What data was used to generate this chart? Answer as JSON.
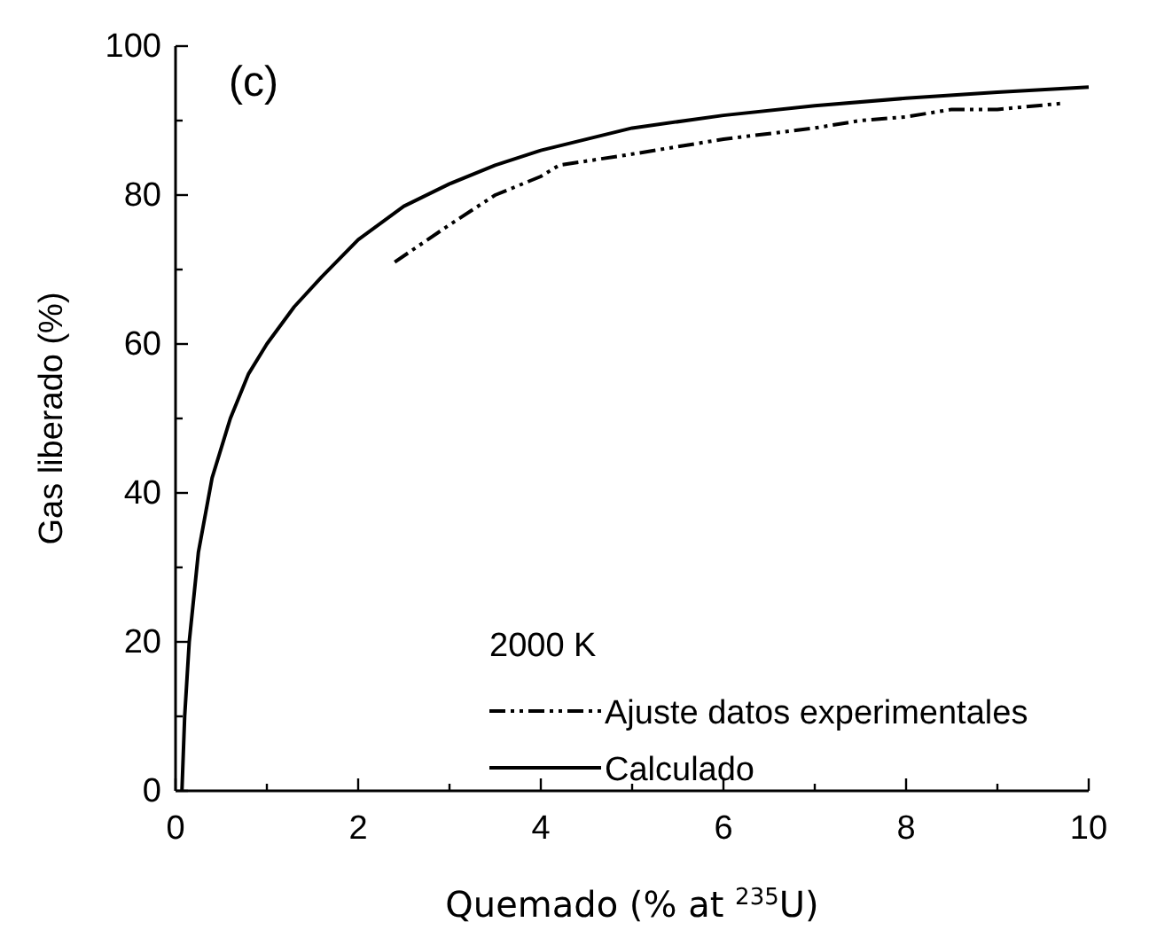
{
  "chart_data": {
    "type": "line",
    "xlabel": "Quemado (% at $^{235}$U)",
    "ylabel": "Gas liberado (%)",
    "legend_title": "2000 K",
    "legend": "bottom right",
    "annotations": [
      "(c)"
    ],
    "xlim": [
      0,
      10
    ],
    "ylim": [
      0,
      100
    ],
    "xticks": [
      0,
      {
        "value": 1,
        "label": null
      },
      2,
      {
        "value": 3,
        "label": null
      },
      4,
      {
        "value": 5,
        "label": null
      },
      6,
      {
        "value": 7,
        "label": null
      },
      8,
      {
        "value": 9,
        "label": null
      },
      10
    ],
    "yticks": [
      0,
      {
        "value": 10,
        "label": null
      },
      20,
      {
        "value": 30,
        "label": null
      },
      40,
      {
        "value": 50,
        "label": null
      },
      60,
      {
        "value": 70,
        "label": null
      },
      80,
      {
        "value": 90,
        "label": null
      },
      100
    ],
    "series": [
      {
        "name": "Ajuste datos experimentales",
        "color": "#000000",
        "line_style": "dashed",
        "x": [
          2.4,
          3,
          3.5,
          4,
          4.2,
          5,
          6,
          7,
          7.5,
          8,
          8.5,
          9,
          9.7
        ],
        "values": [
          71,
          76,
          80,
          82.5,
          84,
          85.5,
          87.5,
          89,
          90,
          90.5,
          91.5,
          91.5,
          92.3
        ]
      },
      {
        "name": "Calculado",
        "color": "#000000",
        "line_style": "solid",
        "x": [
          0.07,
          0.1,
          0.15,
          0.25,
          0.4,
          0.6,
          0.8,
          1,
          1.3,
          1.6,
          2,
          2.5,
          3,
          3.5,
          4,
          5,
          6,
          7,
          8,
          9,
          10
        ],
        "values": [
          0,
          10,
          20,
          32,
          42,
          50,
          56,
          60,
          65,
          69,
          74,
          78.5,
          81.5,
          84,
          86,
          89,
          90.7,
          92,
          93,
          93.8,
          94.5
        ]
      }
    ]
  }
}
